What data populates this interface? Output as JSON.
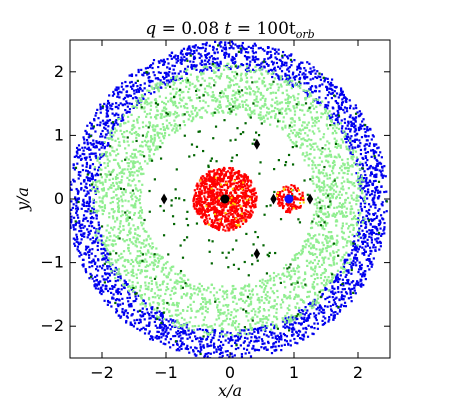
{
  "chart_data": {
    "type": "scatter",
    "title": {
      "q_label": "q",
      "q_value": "0.08",
      "t_label": "t",
      "t_value": "100t",
      "t_sub": "orb"
    },
    "xlabel": {
      "main": "x",
      "denom": "/a"
    },
    "ylabel": {
      "main": "y",
      "denom": "/a"
    },
    "xlim": [
      -2.5,
      2.5
    ],
    "ylim": [
      -2.5,
      2.5
    ],
    "xticks": [
      -2,
      -1,
      0,
      1,
      2
    ],
    "yticks": [
      -2,
      -1,
      0,
      1,
      2
    ],
    "xtick_labels": [
      "−2",
      "−1",
      "0",
      "1",
      "2"
    ],
    "ytick_labels": [
      "−2",
      "−1",
      "0",
      "1",
      "2"
    ],
    "grid": false,
    "colors": {
      "outer_ring": "#0000ee",
      "inner_ring": "#90ee90",
      "scattered": "#006400",
      "primary_disk": "#ff0000",
      "secondary_disk": "#ff0000",
      "disk_dots": "#ffd700",
      "primary_star": "#000000",
      "secondary_star": "#1010ff",
      "lagrange": "#000000"
    },
    "populations": [
      {
        "name": "outer_ring",
        "r_range": [
          2.05,
          2.5
        ],
        "count": 2600
      },
      {
        "name": "inner_ring",
        "r_range": [
          1.35,
          2.15
        ],
        "count": 2600
      },
      {
        "name": "scattered",
        "r_range": [
          0.6,
          2.5
        ],
        "count": 260
      },
      {
        "name": "primary_disk",
        "center": [
          -0.08,
          0.0
        ],
        "radius": 0.5,
        "count": 900
      },
      {
        "name": "secondary_disk",
        "center": [
          0.94,
          0.0
        ],
        "radius": 0.22,
        "count": 120
      }
    ],
    "points": {
      "primary_star": [
        {
          "x": -0.08,
          "y": 0.0
        }
      ],
      "secondary_star": [
        {
          "x": 0.92,
          "y": 0.0
        }
      ],
      "lagrange": [
        {
          "x": -1.03,
          "y": 0.0
        },
        {
          "x": 0.68,
          "y": 0.0
        },
        {
          "x": 1.25,
          "y": 0.0
        },
        {
          "x": 0.42,
          "y": 0.86
        },
        {
          "x": 0.42,
          "y": -0.86
        }
      ]
    }
  }
}
